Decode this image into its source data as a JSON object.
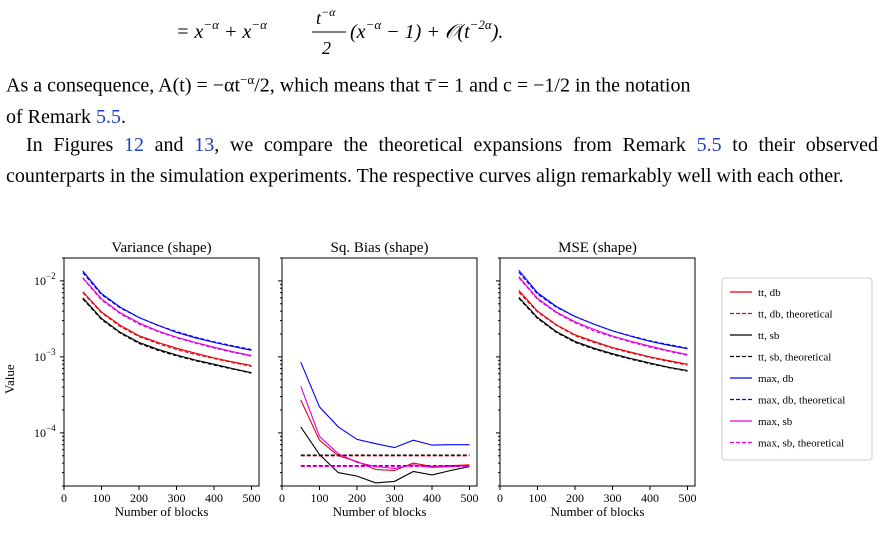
{
  "equation": {
    "line": "= x^{-α} + x^{-α} (t^{-α}/2)(x^{-α} − 1) + O(t^{-2α})."
  },
  "paragraph1": {
    "text_a": "As a consequence, A(t) = −αt",
    "sup_a": "−α",
    "text_b": "/2, which means that τ̄ = 1 and c = −1/2 in the notation",
    "text_c": "of Remark ",
    "ref": "5.5",
    "end": "."
  },
  "paragraph2": {
    "text_a": "In Figures ",
    "ref_fig1": "12",
    "and": " and ",
    "ref_fig2": "13",
    "text_b": ", we compare the theoretical expansions from Remark ",
    "ref_remark": "5.5",
    "text_c": " to their observed counterparts in the simulation experiments. The respective curves align remarkably well with each other."
  },
  "caption_partial": "… (shape) …",
  "chart_data": [
    {
      "type": "line",
      "title": "Variance (shape)",
      "xlabel": "Number of blocks",
      "ylabel": "Value",
      "yscale": "log",
      "ylim": [
        2e-05,
        0.02
      ],
      "xlim": [
        0,
        520
      ],
      "x": [
        50,
        100,
        150,
        200,
        250,
        300,
        350,
        400,
        450,
        500
      ],
      "series": [
        {
          "name": "tt, db",
          "color": "#e8000b",
          "dash": "solid",
          "values": [
            0.0072,
            0.0039,
            0.0026,
            0.0019,
            0.00155,
            0.0013,
            0.00112,
            0.00097,
            0.00086,
            0.00077
          ]
        },
        {
          "name": "tt, db, theoretical",
          "color": "#e8000b",
          "dash": "dashed",
          "values": [
            0.007,
            0.0038,
            0.0025,
            0.00185,
            0.0015,
            0.00125,
            0.00108,
            0.00095,
            0.00084,
            0.00075
          ]
        },
        {
          "name": "tt, sb",
          "color": "#000000",
          "dash": "solid",
          "values": [
            0.006,
            0.0032,
            0.0021,
            0.00155,
            0.00126,
            0.00106,
            0.00091,
            0.0008,
            0.0007,
            0.00062
          ]
        },
        {
          "name": "tt, sb, theoretical",
          "color": "#000000",
          "dash": "dashed",
          "values": [
            0.0058,
            0.0031,
            0.00205,
            0.0015,
            0.00122,
            0.00103,
            0.00089,
            0.00078,
            0.00069,
            0.00061
          ]
        },
        {
          "name": "max, db",
          "color": "#0000ff",
          "dash": "solid",
          "values": [
            0.0135,
            0.0068,
            0.0045,
            0.0033,
            0.0026,
            0.0021,
            0.00178,
            0.00155,
            0.00137,
            0.00122
          ]
        },
        {
          "name": "max, db, theoretical",
          "color": "#0000ff",
          "dash": "dashed",
          "values": [
            0.0128,
            0.0066,
            0.0044,
            0.0033,
            0.0026,
            0.00215,
            0.00182,
            0.00158,
            0.0014,
            0.00125
          ]
        },
        {
          "name": "max, sb",
          "color": "#e000e0",
          "dash": "solid",
          "values": [
            0.011,
            0.0058,
            0.0038,
            0.0028,
            0.0022,
            0.00182,
            0.00155,
            0.00134,
            0.00117,
            0.00104
          ]
        },
        {
          "name": "max, sb, theoretical",
          "color": "#e000e0",
          "dash": "dashed",
          "values": [
            0.0108,
            0.0056,
            0.0037,
            0.0027,
            0.00215,
            0.00178,
            0.00152,
            0.00131,
            0.00115,
            0.00102
          ]
        }
      ]
    },
    {
      "type": "line",
      "title": "Sq. Bias (shape)",
      "xlabel": "Number of blocks",
      "yscale": "log",
      "ylim": [
        2e-05,
        0.02
      ],
      "xlim": [
        0,
        520
      ],
      "x": [
        50,
        100,
        150,
        200,
        250,
        300,
        350,
        400,
        450,
        500
      ],
      "series": [
        {
          "name": "tt, db",
          "color": "#e8000b",
          "dash": "solid",
          "values": [
            0.00027,
            8e-05,
            5e-05,
            4.2e-05,
            3.3e-05,
            3.2e-05,
            4e-05,
            3.6e-05,
            3.7e-05,
            3.8e-05
          ]
        },
        {
          "name": "tt, db, theoretical",
          "color": "#e8000b",
          "dash": "dashed",
          "values": [
            5e-05,
            5e-05,
            5e-05,
            5e-05,
            5e-05,
            5e-05,
            5e-05,
            5e-05,
            5e-05,
            5e-05
          ]
        },
        {
          "name": "tt, sb",
          "color": "#000000",
          "dash": "solid",
          "values": [
            0.00012,
            5.2e-05,
            3e-05,
            2.7e-05,
            2.2e-05,
            2.3e-05,
            3.1e-05,
            2.8e-05,
            3.2e-05,
            3.6e-05
          ]
        },
        {
          "name": "tt, sb, theoretical",
          "color": "#000000",
          "dash": "dashed",
          "values": [
            5.1e-05,
            5.1e-05,
            5.1e-05,
            5.1e-05,
            5.1e-05,
            5.1e-05,
            5.1e-05,
            5.1e-05,
            5.1e-05,
            5.1e-05
          ]
        },
        {
          "name": "max, db",
          "color": "#0000ff",
          "dash": "solid",
          "values": [
            0.00085,
            0.00022,
            0.00012,
            8.2e-05,
            7.2e-05,
            6.4e-05,
            8e-05,
            6.9e-05,
            7e-05,
            7e-05
          ]
        },
        {
          "name": "max, db, theoretical",
          "color": "#0000ff",
          "dash": "dashed",
          "values": [
            3.7e-05,
            3.7e-05,
            3.7e-05,
            3.7e-05,
            3.7e-05,
            3.7e-05,
            3.7e-05,
            3.7e-05,
            3.7e-05,
            3.7e-05
          ]
        },
        {
          "name": "max, sb",
          "color": "#e000e0",
          "dash": "solid",
          "values": [
            0.00041,
            9e-05,
            5.3e-05,
            4.1e-05,
            3.6e-05,
            3.4e-05,
            3.8e-05,
            3.5e-05,
            3.6e-05,
            3.7e-05
          ]
        },
        {
          "name": "max, sb, theoretical",
          "color": "#e000e0",
          "dash": "dashed",
          "values": [
            3.6e-05,
            3.6e-05,
            3.6e-05,
            3.6e-05,
            3.6e-05,
            3.6e-05,
            3.6e-05,
            3.6e-05,
            3.6e-05,
            3.6e-05
          ]
        }
      ]
    },
    {
      "type": "line",
      "title": "MSE (shape)",
      "xlabel": "Number of blocks",
      "yscale": "log",
      "ylim": [
        2e-05,
        0.02
      ],
      "xlim": [
        0,
        520
      ],
      "x": [
        50,
        100,
        150,
        200,
        250,
        300,
        350,
        400,
        450,
        500
      ],
      "series": [
        {
          "name": "tt, db",
          "color": "#e8000b",
          "dash": "solid",
          "values": [
            0.0075,
            0.004,
            0.00265,
            0.00195,
            0.0016,
            0.00133,
            0.00115,
            0.001,
            0.00089,
            0.0008
          ]
        },
        {
          "name": "tt, db, theoretical",
          "color": "#e8000b",
          "dash": "dashed",
          "values": [
            0.0071,
            0.0039,
            0.0026,
            0.0019,
            0.00155,
            0.0013,
            0.00112,
            0.00098,
            0.00087,
            0.00078
          ]
        },
        {
          "name": "tt, sb",
          "color": "#000000",
          "dash": "solid",
          "values": [
            0.0061,
            0.0033,
            0.00215,
            0.0016,
            0.0013,
            0.0011,
            0.00095,
            0.00083,
            0.00073,
            0.00066
          ]
        },
        {
          "name": "tt, sb, theoretical",
          "color": "#000000",
          "dash": "dashed",
          "values": [
            0.0059,
            0.0032,
            0.0021,
            0.00155,
            0.00127,
            0.00107,
            0.00093,
            0.00081,
            0.00072,
            0.00065
          ]
        },
        {
          "name": "max, db",
          "color": "#0000ff",
          "dash": "solid",
          "values": [
            0.0138,
            0.007,
            0.0046,
            0.0034,
            0.0027,
            0.0022,
            0.00186,
            0.0016,
            0.00142,
            0.00128
          ]
        },
        {
          "name": "max, db, theoretical",
          "color": "#0000ff",
          "dash": "dashed",
          "values": [
            0.013,
            0.0067,
            0.0045,
            0.0034,
            0.0027,
            0.0022,
            0.00188,
            0.00163,
            0.00145,
            0.0013
          ]
        },
        {
          "name": "max, sb",
          "color": "#e000e0",
          "dash": "solid",
          "values": [
            0.0114,
            0.0059,
            0.0039,
            0.0029,
            0.0023,
            0.00188,
            0.0016,
            0.00138,
            0.00121,
            0.00107
          ]
        },
        {
          "name": "max, sb, theoretical",
          "color": "#e000e0",
          "dash": "dashed",
          "values": [
            0.011,
            0.0057,
            0.0038,
            0.0028,
            0.0022,
            0.00183,
            0.00156,
            0.00134,
            0.00118,
            0.00105
          ]
        }
      ]
    }
  ],
  "y_ticks": [
    {
      "label": "10",
      "exp": "−2",
      "value": 0.01
    },
    {
      "label": "10",
      "exp": "−3",
      "value": 0.001
    },
    {
      "label": "10",
      "exp": "−4",
      "value": 0.0001
    }
  ],
  "x_ticks": [
    "0",
    "100",
    "200",
    "300",
    "400",
    "500"
  ],
  "legend": [
    {
      "label": "tt, db",
      "color": "#e8000b",
      "dash": "solid"
    },
    {
      "label": "tt, db, theoretical",
      "color": "#e8000b",
      "dash": "dashed"
    },
    {
      "label": "tt, sb",
      "color": "#000000",
      "dash": "solid"
    },
    {
      "label": "tt, sb, theoretical",
      "color": "#000000",
      "dash": "dashed"
    },
    {
      "label": "max, db",
      "color": "#0000ff",
      "dash": "solid"
    },
    {
      "label": "max, db, theoretical",
      "color": "#0000ff",
      "dash": "dashed"
    },
    {
      "label": "max, sb",
      "color": "#e000e0",
      "dash": "solid"
    },
    {
      "label": "max, sb, theoretical",
      "color": "#e000e0",
      "dash": "dashed"
    }
  ]
}
